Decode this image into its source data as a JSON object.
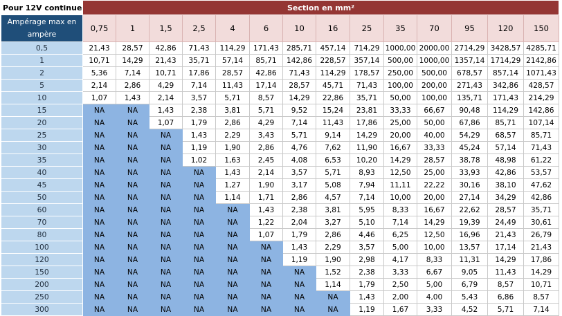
{
  "header": {
    "corner_label": "Pour 12V continue",
    "section_label": "Section en mm²",
    "amp_label": "Ampérage max en ampère"
  },
  "columns": [
    "0,75",
    "1",
    "1,5",
    "2,5",
    "4",
    "6",
    "10",
    "16",
    "25",
    "35",
    "70",
    "95",
    "120",
    "150"
  ],
  "rows": [
    {
      "amp": "0,5",
      "values": [
        "21,43",
        "28,57",
        "42,86",
        "71,43",
        "114,29",
        "171,43",
        "285,71",
        "457,14",
        "714,29",
        "1000,00",
        "2000,00",
        "2714,29",
        "3428,57",
        "4285,71"
      ]
    },
    {
      "amp": "1",
      "values": [
        "10,71",
        "14,29",
        "21,43",
        "35,71",
        "57,14",
        "85,71",
        "142,86",
        "228,57",
        "357,14",
        "500,00",
        "1000,00",
        "1357,14",
        "1714,29",
        "2142,86"
      ]
    },
    {
      "amp": "2",
      "values": [
        "5,36",
        "7,14",
        "10,71",
        "17,86",
        "28,57",
        "42,86",
        "71,43",
        "114,29",
        "178,57",
        "250,00",
        "500,00",
        "678,57",
        "857,14",
        "1071,43"
      ]
    },
    {
      "amp": "5",
      "values": [
        "2,14",
        "2,86",
        "4,29",
        "7,14",
        "11,43",
        "17,14",
        "28,57",
        "45,71",
        "71,43",
        "100,00",
        "200,00",
        "271,43",
        "342,86",
        "428,57"
      ]
    },
    {
      "amp": "10",
      "values": [
        "1,07",
        "1,43",
        "2,14",
        "3,57",
        "5,71",
        "8,57",
        "14,29",
        "22,86",
        "35,71",
        "50,00",
        "100,00",
        "135,71",
        "171,43",
        "214,29"
      ]
    },
    {
      "amp": "15",
      "values": [
        "NA",
        "NA",
        "1,43",
        "2,38",
        "3,81",
        "5,71",
        "9,52",
        "15,24",
        "23,81",
        "33,33",
        "66,67",
        "90,48",
        "114,29",
        "142,86"
      ]
    },
    {
      "amp": "20",
      "values": [
        "NA",
        "NA",
        "1,07",
        "1,79",
        "2,86",
        "4,29",
        "7,14",
        "11,43",
        "17,86",
        "25,00",
        "50,00",
        "67,86",
        "85,71",
        "107,14"
      ]
    },
    {
      "amp": "25",
      "values": [
        "NA",
        "NA",
        "NA",
        "1,43",
        "2,29",
        "3,43",
        "5,71",
        "9,14",
        "14,29",
        "20,00",
        "40,00",
        "54,29",
        "68,57",
        "85,71"
      ]
    },
    {
      "amp": "30",
      "values": [
        "NA",
        "NA",
        "NA",
        "1,19",
        "1,90",
        "2,86",
        "4,76",
        "7,62",
        "11,90",
        "16,67",
        "33,33",
        "45,24",
        "57,14",
        "71,43"
      ]
    },
    {
      "amp": "35",
      "values": [
        "NA",
        "NA",
        "NA",
        "1,02",
        "1,63",
        "2,45",
        "4,08",
        "6,53",
        "10,20",
        "14,29",
        "28,57",
        "38,78",
        "48,98",
        "61,22"
      ]
    },
    {
      "amp": "40",
      "values": [
        "NA",
        "NA",
        "NA",
        "NA",
        "1,43",
        "2,14",
        "3,57",
        "5,71",
        "8,93",
        "12,50",
        "25,00",
        "33,93",
        "42,86",
        "53,57"
      ]
    },
    {
      "amp": "45",
      "values": [
        "NA",
        "NA",
        "NA",
        "NA",
        "1,27",
        "1,90",
        "3,17",
        "5,08",
        "7,94",
        "11,11",
        "22,22",
        "30,16",
        "38,10",
        "47,62"
      ]
    },
    {
      "amp": "50",
      "values": [
        "NA",
        "NA",
        "NA",
        "NA",
        "1,14",
        "1,71",
        "2,86",
        "4,57",
        "7,14",
        "10,00",
        "20,00",
        "27,14",
        "34,29",
        "42,86"
      ]
    },
    {
      "amp": "60",
      "values": [
        "NA",
        "NA",
        "NA",
        "NA",
        "NA",
        "1,43",
        "2,38",
        "3,81",
        "5,95",
        "8,33",
        "16,67",
        "22,62",
        "28,57",
        "35,71"
      ]
    },
    {
      "amp": "70",
      "values": [
        "NA",
        "NA",
        "NA",
        "NA",
        "NA",
        "1,22",
        "2,04",
        "3,27",
        "5,10",
        "7,14",
        "14,29",
        "19,39",
        "24,49",
        "30,61"
      ]
    },
    {
      "amp": "80",
      "values": [
        "NA",
        "NA",
        "NA",
        "NA",
        "NA",
        "1,07",
        "1,79",
        "2,86",
        "4,46",
        "6,25",
        "12,50",
        "16,96",
        "21,43",
        "26,79"
      ]
    },
    {
      "amp": "100",
      "values": [
        "NA",
        "NA",
        "NA",
        "NA",
        "NA",
        "NA",
        "1,43",
        "2,29",
        "3,57",
        "5,00",
        "10,00",
        "13,57",
        "17,14",
        "21,43"
      ]
    },
    {
      "amp": "120",
      "values": [
        "NA",
        "NA",
        "NA",
        "NA",
        "NA",
        "NA",
        "1,19",
        "1,90",
        "2,98",
        "4,17",
        "8,33",
        "11,31",
        "14,29",
        "17,86"
      ]
    },
    {
      "amp": "150",
      "values": [
        "NA",
        "NA",
        "NA",
        "NA",
        "NA",
        "NA",
        "NA",
        "1,52",
        "2,38",
        "3,33",
        "6,67",
        "9,05",
        "11,43",
        "14,29"
      ]
    },
    {
      "amp": "200",
      "values": [
        "NA",
        "NA",
        "NA",
        "NA",
        "NA",
        "NA",
        "NA",
        "1,14",
        "1,79",
        "2,50",
        "5,00",
        "6,79",
        "8,57",
        "10,71"
      ]
    },
    {
      "amp": "250",
      "values": [
        "NA",
        "NA",
        "NA",
        "NA",
        "NA",
        "NA",
        "NA",
        "NA",
        "1,43",
        "2,00",
        "4,00",
        "5,43",
        "6,86",
        "8,57"
      ]
    },
    {
      "amp": "300",
      "values": [
        "NA",
        "NA",
        "NA",
        "NA",
        "NA",
        "NA",
        "NA",
        "NA",
        "1,19",
        "1,67",
        "3,33",
        "4,52",
        "5,71",
        "7,14"
      ]
    }
  ],
  "colors": {
    "section_header": "#943634",
    "amp_header": "#1f4e79",
    "column_header": "#f2dcdb",
    "row_header": "#bdd7ee",
    "na_cell": "#8db4e2"
  }
}
